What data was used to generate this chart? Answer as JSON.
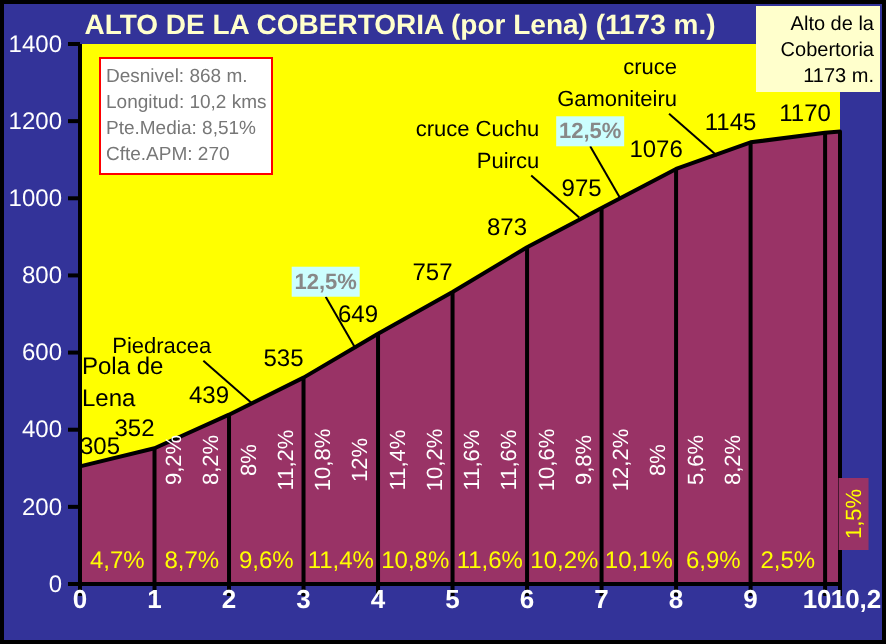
{
  "chart_data": {
    "type": "area",
    "title": "ALTO DE LA COBERTORIA (por Lena) (1173 m.)",
    "x": [
      0,
      1,
      2,
      3,
      4,
      5,
      6,
      7,
      8,
      9,
      10,
      10.2
    ],
    "series": [
      {
        "color": "#993366",
        "values": [
          305,
          352,
          439,
          535,
          649,
          757,
          873,
          975,
          1076,
          1145,
          1170,
          1173
        ],
        "value_labels": [
          "305",
          "352",
          "439",
          "535",
          "649",
          "757",
          "873",
          "975",
          "1076",
          "1145",
          "1170",
          null
        ]
      }
    ],
    "xlim": [
      0,
      10.2
    ],
    "ylim": [
      0,
      1400
    ],
    "xticks": [
      0,
      1,
      2,
      3,
      4,
      5,
      6,
      7,
      8,
      9,
      {
        "value": 10,
        "label": "10"
      },
      {
        "value": 10.2,
        "label": "10,2"
      }
    ],
    "yticks": [
      0,
      200,
      400,
      600,
      800,
      1000,
      1200,
      1400
    ],
    "grid": "x",
    "annotations": [
      "4,7%",
      "8,7%",
      "9,6%",
      "11,4%",
      "10,8%",
      "11,6%",
      "10,2%",
      "10,1%",
      "6,9%",
      "2,5%",
      "1,5%",
      "9,2%",
      "8,2%",
      "8%",
      "11,2%",
      "10,8%",
      "12%",
      "11,4%",
      "10,2%",
      "11,6%",
      "11,6%",
      "10,6%",
      "9,8%",
      "12,2%",
      "8%",
      "5,6%",
      "8,2%",
      "Desnivel: 868 m.",
      "Longitud: 10,2 kms",
      "Pte.Media: 8,51%",
      "Cfte.APM: 270",
      {
        "text": "Pola de Lena",
        "x": 0,
        "y": 305
      },
      {
        "text": "Piedracea",
        "x": 2.3,
        "y": 470
      },
      {
        "text": "12,5%",
        "x": 3.7,
        "y": 610
      },
      {
        "text": "cruce Cuchu Puircu",
        "x": 6.7,
        "y": 950
      },
      {
        "text": "12,5%",
        "x": 7.25,
        "y": 1000
      },
      {
        "text": "cruce Gamoniteiru",
        "x": 8.55,
        "y": 1110
      },
      {
        "text": "Alto de la Cobertoria 1173 m.",
        "x": 10.2,
        "y": 1173
      }
    ]
  }
}
